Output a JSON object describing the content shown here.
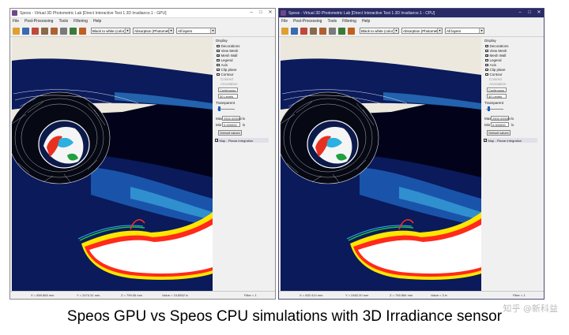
{
  "windows": [
    {
      "id": "gpu",
      "title": "Speos - Virtual 3D Photometric Lab [Direct Interactive Test 1.3D Irradiance.1 - GPU]",
      "menu": [
        "File",
        "Post-Processing",
        "Tools",
        "Filtering",
        "Help"
      ],
      "color_mode": "Black to white (color)",
      "measure": "Absorption (Photometric)",
      "layers": "All layers",
      "display": {
        "heading": "Display",
        "options": [
          {
            "label": "Decorations",
            "checked": false
          },
          {
            "label": "View Mesh",
            "checked": false
          },
          {
            "label": "Mesh Wall",
            "checked": true
          },
          {
            "label": "Legend",
            "checked": false
          },
          {
            "label": "Axis",
            "checked": false
          },
          {
            "label": "Clip plane",
            "checked": false
          },
          {
            "label": "Contour",
            "checked": false
          }
        ],
        "sub_options": [
          "Colored",
          "Annotation"
        ],
        "mode": "Continuous",
        "levels": "30 Levels",
        "transparent_label": "Transparent",
        "transparency": 0.05,
        "max_label": "Max",
        "max_value": "2500.000000",
        "min_label": "Min",
        "min_value": "0.000000",
        "unit": "lx",
        "default_button": "Default values",
        "map_option": "Map - Planar integration"
      },
      "status": {
        "x": "X = 859.865 mm",
        "y": "Y = 2474.31 mm",
        "z": "Z = 799.06 mm",
        "value": "Value = 15.8552 lx",
        "filter": "Filter = 1"
      }
    },
    {
      "id": "cpu",
      "title": "Speos - Virtual 3D Photometric Lab [Direct Interactive Test 1.3D Irradiance.1 - CPU]",
      "menu": [
        "File",
        "Post-Processing",
        "Tools",
        "Filtering",
        "Help"
      ],
      "color_mode": "Black to white (color)",
      "measure": "Absorption (Photometric)",
      "layers": "All layers",
      "display": {
        "heading": "Display",
        "options": [
          {
            "label": "Decorations",
            "checked": false
          },
          {
            "label": "View Mesh",
            "checked": false
          },
          {
            "label": "Mesh Wall",
            "checked": true
          },
          {
            "label": "Legend",
            "checked": false
          },
          {
            "label": "Axis",
            "checked": false
          },
          {
            "label": "Clip plane",
            "checked": false
          },
          {
            "label": "Contour",
            "checked": false
          }
        ],
        "sub_options": [
          "Colored",
          "Annotation"
        ],
        "mode": "Continuous",
        "levels": "30 Levels",
        "transparent_label": "Transparent",
        "transparency": 0.1,
        "max_label": "Max",
        "max_value": "2500.000000",
        "min_label": "Min",
        "min_value": "0.000000",
        "unit": "lx",
        "default_button": "Default values",
        "map_option": "Map - Planar integration"
      },
      "status": {
        "x": "X = 832.414 mm",
        "y": "Y = 2462.20 mm",
        "z": "Z = 745.584 mm",
        "value": "Value = 3 lx",
        "filter": "Filter = 1"
      }
    }
  ],
  "caption": "Speos GPU vs Speos CPU simulations with 3D Irradiance sensor",
  "watermark": "知乎 @新科益",
  "colors": {
    "accent": "#1a5fbf",
    "viewport_bg": "#ede8dd",
    "cpu_titlebar": "#2a2a66"
  }
}
